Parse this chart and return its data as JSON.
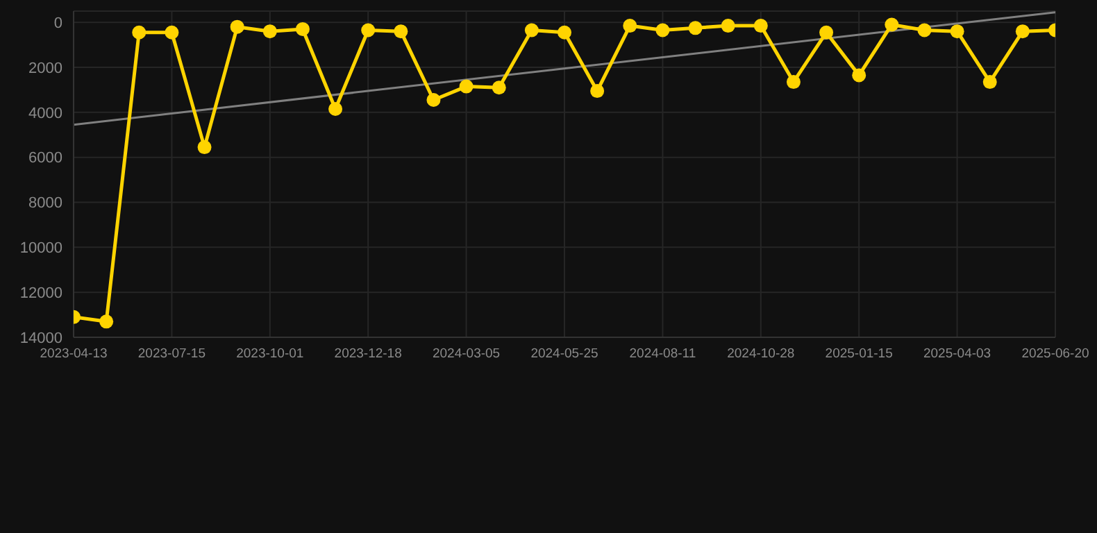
{
  "chart_data": {
    "type": "line",
    "categories": [
      "2023-04-13",
      null,
      null,
      "2023-07-15",
      null,
      null,
      "2023-10-01",
      null,
      null,
      "2023-12-18",
      null,
      null,
      "2024-03-05",
      null,
      null,
      "2024-05-25",
      null,
      null,
      "2024-08-11",
      null,
      null,
      "2024-10-28",
      null,
      null,
      "2025-01-15",
      null,
      null,
      "2025-04-03",
      null,
      null,
      "2025-06-20"
    ],
    "series": [
      {
        "color": "#ffd400",
        "values": [
          13100,
          13300,
          450,
          450,
          5550,
          200,
          400,
          300,
          3850,
          350,
          400,
          3450,
          2850,
          2900,
          350,
          450,
          3050,
          150,
          350,
          250,
          150,
          150,
          2650,
          450,
          2350,
          100,
          350,
          400,
          2650,
          400,
          350
        ],
        "marker": "circle"
      },
      {
        "type": "line",
        "color": "#808080",
        "values": [
          4550,
          null,
          null,
          null,
          null,
          null,
          null,
          null,
          null,
          null,
          null,
          null,
          null,
          null,
          null,
          null,
          null,
          null,
          null,
          null,
          null,
          null,
          null,
          null,
          null,
          null,
          null,
          null,
          null,
          null,
          -450
        ],
        "marker": "none"
      }
    ],
    "ylim": [
      14000,
      -500
    ],
    "yticks": [
      0,
      2000,
      4000,
      6000,
      8000,
      10000,
      12000,
      14000
    ],
    "grid": true,
    "line_style": "solid"
  }
}
